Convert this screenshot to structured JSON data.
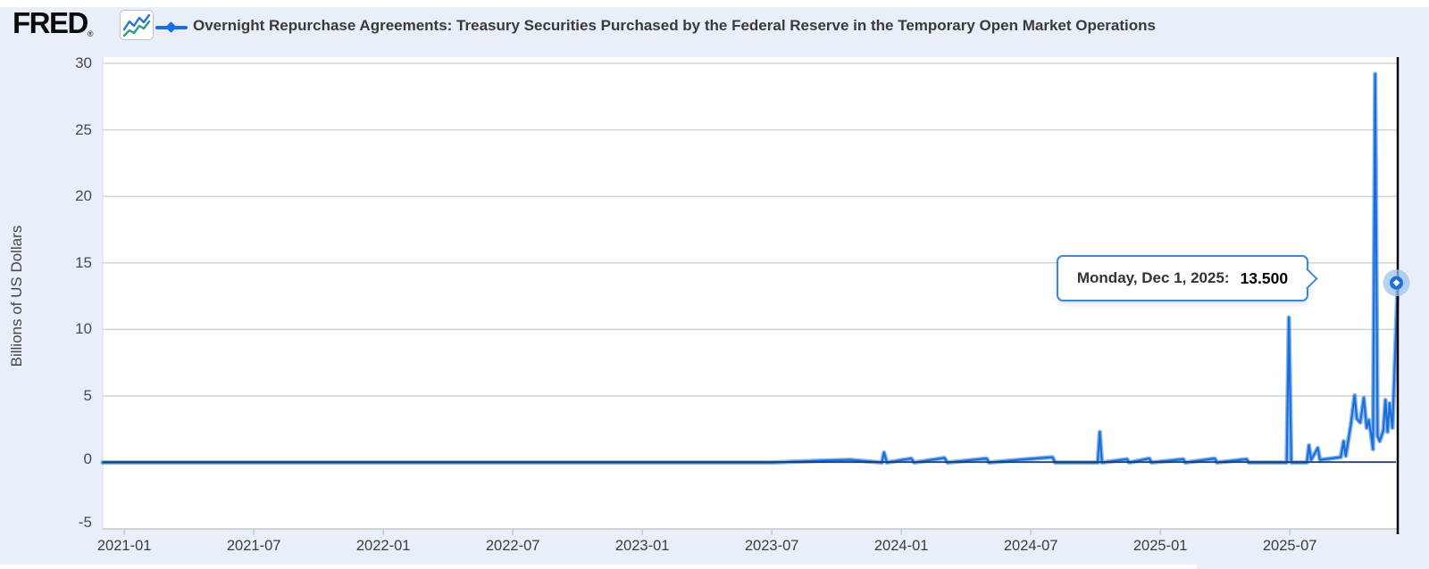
{
  "header": {
    "logo_text": "FRED",
    "registered_mark": "®",
    "series_title": "Overnight Repurchase Agreements: Treasury Securities Purchased by the Federal Reserve in the Temporary Open Market Operations"
  },
  "y_axis": {
    "title": "Billions of US Dollars",
    "ticks": [
      30,
      25,
      20,
      15,
      10,
      5,
      0,
      -5
    ]
  },
  "x_axis": {
    "ticks": [
      "2021-01",
      "2021-07",
      "2022-01",
      "2022-07",
      "2023-01",
      "2023-07",
      "2024-01",
      "2024-07",
      "2025-01",
      "2025-07"
    ]
  },
  "tooltip": {
    "date_label": "Monday, Dec 1, 2025:",
    "value_label": "13.500"
  },
  "colors": {
    "page_bg": "#e9eff8",
    "plot_bg": "#ffffff",
    "line_blue": "#1a6fdb",
    "line_glow": "rgba(26,111,219,0.5)",
    "zero_core": "#1b3a66",
    "grid": "#d4d4d4",
    "axis_line": "#c7c7c7",
    "tick": "#c3cedd",
    "crosshair": "#000000",
    "halo": "#9fc2ec",
    "icon_blue": "#2f6fd0",
    "icon_teal": "#27a083",
    "tooltip_border": "#3f87d6"
  },
  "chart_data": {
    "type": "line",
    "title": "Overnight Repurchase Agreements: Treasury Securities Purchased by the Federal Reserve in the Temporary Open Market Operations",
    "xlabel": "",
    "ylabel": "Billions of US Dollars",
    "ylim": [
      -5,
      30.5
    ],
    "x_range": [
      "2020-12-01",
      "2025-12-01"
    ],
    "grid": true,
    "legend_position": "top",
    "highlighted_point": {
      "date": "2025-12-01",
      "value": 13.5,
      "label": "Monday, Dec 1, 2025: 13.500"
    },
    "points": [
      [
        "2020-12-01",
        0
      ],
      [
        "2021-03-01",
        0
      ],
      [
        "2021-06-01",
        0
      ],
      [
        "2021-09-01",
        0
      ],
      [
        "2022-01-01",
        0
      ],
      [
        "2022-04-01",
        0
      ],
      [
        "2022-07-01",
        0
      ],
      [
        "2022-10-01",
        0
      ],
      [
        "2023-01-01",
        0
      ],
      [
        "2023-04-01",
        0
      ],
      [
        "2023-07-01",
        0
      ],
      [
        "2023-09-15",
        0.15
      ],
      [
        "2023-10-20",
        0.2
      ],
      [
        "2023-12-04",
        0
      ],
      [
        "2023-12-07",
        0.75
      ],
      [
        "2023-12-11",
        0
      ],
      [
        "2024-01-15",
        0.3
      ],
      [
        "2024-01-19",
        0
      ],
      [
        "2024-03-01",
        0.35
      ],
      [
        "2024-03-05",
        0
      ],
      [
        "2024-04-30",
        0.3
      ],
      [
        "2024-05-03",
        0
      ],
      [
        "2024-06-14",
        0.2
      ],
      [
        "2024-08-01",
        0.4
      ],
      [
        "2024-08-05",
        0
      ],
      [
        "2024-10-04",
        0
      ],
      [
        "2024-10-07",
        2.3
      ],
      [
        "2024-10-10",
        0
      ],
      [
        "2024-11-15",
        0.25
      ],
      [
        "2024-11-18",
        0
      ],
      [
        "2024-12-16",
        0.3
      ],
      [
        "2024-12-19",
        0
      ],
      [
        "2025-02-03",
        0.25
      ],
      [
        "2025-02-06",
        0
      ],
      [
        "2025-03-17",
        0.3
      ],
      [
        "2025-03-20",
        0
      ],
      [
        "2025-05-01",
        0.25
      ],
      [
        "2025-05-04",
        0
      ],
      [
        "2025-06-27",
        0
      ],
      [
        "2025-06-30",
        10.9
      ],
      [
        "2025-07-03",
        0
      ],
      [
        "2025-07-25",
        0
      ],
      [
        "2025-07-28",
        1.3
      ],
      [
        "2025-07-31",
        0.2
      ],
      [
        "2025-08-10",
        1.1
      ],
      [
        "2025-08-13",
        0.2
      ],
      [
        "2025-09-12",
        0.4
      ],
      [
        "2025-09-16",
        1.6
      ],
      [
        "2025-09-19",
        0.5
      ],
      [
        "2025-09-26",
        2.8
      ],
      [
        "2025-10-01",
        5.05
      ],
      [
        "2025-10-04",
        3.3
      ],
      [
        "2025-10-09",
        3.0
      ],
      [
        "2025-10-14",
        4.85
      ],
      [
        "2025-10-18",
        2.6
      ],
      [
        "2025-10-21",
        3.2
      ],
      [
        "2025-10-24",
        2.2
      ],
      [
        "2025-10-27",
        1.0
      ],
      [
        "2025-10-30",
        29.2
      ],
      [
        "2025-11-03",
        2.0
      ],
      [
        "2025-11-06",
        1.6
      ],
      [
        "2025-11-11",
        2.4
      ],
      [
        "2025-11-14",
        4.7
      ],
      [
        "2025-11-17",
        2.3
      ],
      [
        "2025-11-20",
        4.45
      ],
      [
        "2025-11-24",
        2.6
      ],
      [
        "2025-12-01",
        13.5
      ]
    ]
  }
}
